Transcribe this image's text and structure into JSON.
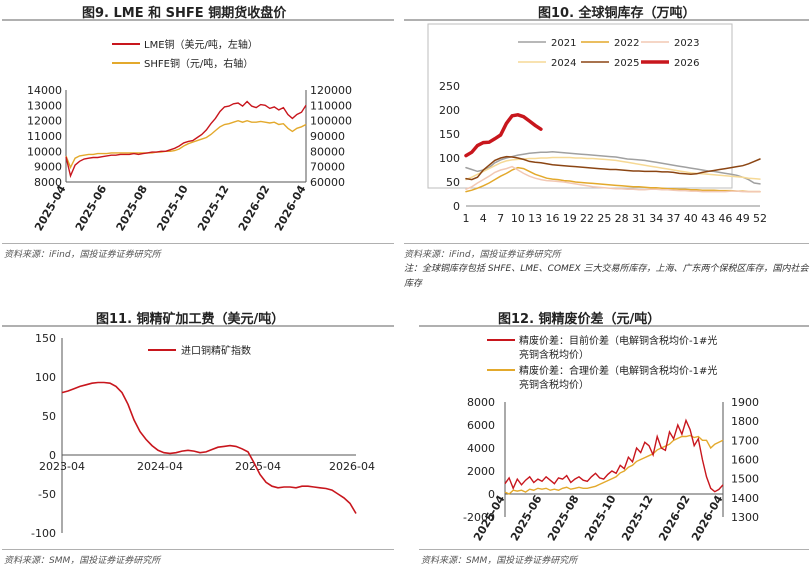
{
  "titles": {
    "fig9": "图9. LME 和 SHFE 铜期货收盘价",
    "fig10": "图10. 全球铜库存（万吨）",
    "fig11": "图11. 铜精矿加工费（美元/吨）",
    "fig12": "图12. 铜精废价差（元/吨）"
  },
  "sources": {
    "fig9": "资料来源：iFind，国投证券证券研究所",
    "fig10": "资料来源：iFind，国投证券证券研究所",
    "fig11": "资料来源：SMM，国投证券证券研究所",
    "fig12": "资料来源：SMM，国投证券证券研究所"
  },
  "note10": "注：全球铜库存包括 SHFE、LME、COMEX 三大交易所库存，上海、广东两个保税区库存，国内社会库存",
  "colors": {
    "red": "#c8161d",
    "gold": "#e3a92c",
    "brown": "#8b4513",
    "gray": "#a0a0a0",
    "pink": "#f2c8b4",
    "lightgold": "#f6d995"
  },
  "chart_data": [
    {
      "id": "fig9",
      "type": "line",
      "legend": [
        "LME铜（美元/吨，左轴）",
        "SHFE铜（元/吨，右轴）"
      ],
      "x_ticks": [
        "2025-04",
        "2025-06",
        "2025-08",
        "2025-10",
        "2025-12",
        "2026-02",
        "2026-04"
      ],
      "yleft_ticks": [
        8000,
        9000,
        10000,
        11000,
        12000,
        13000,
        14000
      ],
      "yright_ticks": [
        60000,
        70000,
        80000,
        90000,
        100000,
        110000,
        120000
      ],
      "ylim_left": [
        8000,
        14000
      ],
      "ylim_right": [
        60000,
        120000
      ],
      "series": [
        {
          "name": "LME铜（美元/吨，左轴）",
          "axis": "left",
          "color": "#c8161d",
          "values": [
            9650,
            8400,
            9100,
            9350,
            9500,
            9550,
            9600,
            9600,
            9650,
            9700,
            9750,
            9750,
            9800,
            9800,
            9800,
            9850,
            9800,
            9850,
            9900,
            9950,
            9950,
            10000,
            10000,
            10100,
            10200,
            10350,
            10550,
            10650,
            10700,
            10900,
            11100,
            11400,
            11800,
            12150,
            12600,
            12900,
            12950,
            13100,
            13150,
            12950,
            13250,
            12950,
            12850,
            13050,
            13000,
            12800,
            12900,
            12700,
            12850,
            12400,
            12150,
            12400,
            12550,
            13000
          ]
        },
        {
          "name": "SHFE铜（元/吨，右轴）",
          "axis": "right",
          "color": "#e3a92c",
          "values": [
            77000,
            69500,
            75500,
            77000,
            77500,
            78000,
            78000,
            78500,
            78500,
            78500,
            79000,
            79000,
            79000,
            79000,
            79000,
            79000,
            79000,
            79000,
            79000,
            79000,
            79500,
            79500,
            80000,
            80000,
            80500,
            81500,
            83500,
            85000,
            86000,
            87000,
            88000,
            89000,
            91000,
            93500,
            96000,
            97500,
            98000,
            99000,
            100000,
            99000,
            100000,
            99000,
            99000,
            99500,
            99000,
            98500,
            99000,
            97500,
            98000,
            95000,
            93000,
            95000,
            96000,
            97500
          ]
        }
      ]
    },
    {
      "id": "fig10",
      "type": "line",
      "x_ticks": [
        1,
        4,
        7,
        10,
        13,
        16,
        19,
        22,
        25,
        28,
        31,
        34,
        37,
        40,
        43,
        46,
        49,
        52
      ],
      "y_ticks": [
        0,
        50,
        100,
        150,
        200,
        250
      ],
      "ylim": [
        0,
        250
      ],
      "series": [
        {
          "name": "2021",
          "color": "#a0a0a0",
          "width": 1.5,
          "values": [
            80,
            76,
            72,
            75,
            80,
            90,
            96,
            100,
            103,
            106,
            108,
            110,
            111,
            112,
            112,
            113,
            112,
            111,
            110,
            109,
            108,
            107,
            106,
            105,
            104,
            103,
            102,
            100,
            98,
            97,
            96,
            95,
            93,
            91,
            89,
            87,
            85,
            83,
            81,
            79,
            77,
            75,
            73,
            72,
            70,
            68,
            66,
            64,
            60,
            55,
            48,
            46
          ]
        },
        {
          "name": "2022",
          "color": "#e3a92c",
          "width": 1.5,
          "values": [
            30,
            33,
            37,
            42,
            48,
            55,
            62,
            68,
            75,
            80,
            78,
            72,
            66,
            62,
            58,
            56,
            55,
            53,
            52,
            50,
            49,
            48,
            47,
            46,
            45,
            44,
            43,
            42,
            41,
            40,
            40,
            39,
            38,
            38,
            37,
            36,
            36,
            35,
            35,
            34,
            34,
            33,
            33,
            33,
            32,
            32,
            32,
            31,
            31,
            30,
            30,
            30
          ]
        },
        {
          "name": "2023",
          "color": "#f2c8b4",
          "width": 1.5,
          "values": [
            35,
            40,
            48,
            55,
            62,
            70,
            75,
            78,
            82,
            75,
            68,
            62,
            58,
            55,
            53,
            52,
            51,
            50,
            48,
            46,
            44,
            42,
            40,
            39,
            38,
            37,
            36,
            36,
            35,
            35,
            34,
            34,
            35,
            35,
            34,
            34,
            33,
            32,
            32,
            31,
            31,
            30,
            30,
            30,
            30,
            30,
            31,
            31,
            30,
            30,
            30,
            30
          ]
        },
        {
          "name": "2024",
          "color": "#f6d995",
          "width": 1.5,
          "values": [
            55,
            60,
            66,
            72,
            78,
            84,
            90,
            94,
            96,
            97,
            98,
            99,
            99,
            100,
            100,
            101,
            101,
            101,
            101,
            100,
            100,
            99,
            99,
            98,
            97,
            96,
            95,
            93,
            91,
            89,
            87,
            85,
            83,
            81,
            79,
            77,
            75,
            73,
            71,
            69,
            68,
            67,
            66,
            65,
            64,
            63,
            62,
            61,
            60,
            58,
            57,
            56
          ]
        },
        {
          "name": "2025",
          "color": "#8b4513",
          "width": 1.5,
          "values": [
            57,
            55,
            60,
            75,
            85,
            95,
            100,
            103,
            102,
            100,
            97,
            93,
            91,
            90,
            88,
            86,
            85,
            84,
            83,
            82,
            81,
            80,
            79,
            78,
            77,
            76,
            76,
            75,
            74,
            73,
            73,
            72,
            72,
            72,
            71,
            71,
            70,
            68,
            67,
            66,
            67,
            70,
            72,
            74,
            76,
            78,
            80,
            82,
            84,
            88,
            93,
            98
          ]
        },
        {
          "name": "2026",
          "color": "#c8161d",
          "width": 3.5,
          "values": [
            105,
            112,
            126,
            132,
            133,
            140,
            148,
            172,
            188,
            190,
            186,
            177,
            168,
            160
          ]
        }
      ]
    },
    {
      "id": "fig11",
      "type": "line",
      "legend": [
        "进口铜精矿指数"
      ],
      "x_ticks": [
        "2023-04",
        "2024-04",
        "2025-04",
        "2026-04"
      ],
      "y_ticks": [
        -100,
        -50,
        0,
        50,
        100,
        150
      ],
      "ylim": [
        -100,
        150
      ],
      "series": [
        {
          "name": "进口铜精矿指数",
          "color": "#c8161d",
          "values": [
            80,
            82,
            85,
            88,
            90,
            92,
            93,
            93,
            92,
            88,
            80,
            65,
            45,
            30,
            20,
            12,
            6,
            3,
            2,
            3,
            5,
            6,
            5,
            3,
            4,
            7,
            10,
            11,
            12,
            11,
            8,
            4,
            -10,
            -25,
            -35,
            -40,
            -42,
            -41,
            -41,
            -42,
            -40,
            -40,
            -41,
            -42,
            -43,
            -45,
            -50,
            -55,
            -62,
            -75
          ]
        }
      ]
    },
    {
      "id": "fig12",
      "type": "line",
      "legend": [
        "精废价差：目前价差（电解铜含税均价-1#光亮铜含税均价）",
        "精废价差：合理价差（电解铜含税均价-1#光亮铜含税均价）"
      ],
      "x_ticks": [
        "2025-04",
        "2025-06",
        "2025-08",
        "2025-10",
        "2025-12",
        "2026-02",
        "2026-04"
      ],
      "yleft_ticks": [
        -2000,
        0,
        2000,
        4000,
        6000,
        8000
      ],
      "yright_ticks": [
        1300,
        1400,
        1500,
        1600,
        1700,
        1800,
        1900
      ],
      "ylim_left": [
        -2000,
        8000
      ],
      "ylim_right": [
        1300,
        1900
      ],
      "series": [
        {
          "name": "精废价差：目前价差（电解铜含税均价-1#光亮铜含税均价）",
          "axis": "left",
          "color": "#c8161d",
          "values": [
            900,
            1400,
            500,
            1300,
            800,
            1200,
            1500,
            1000,
            1300,
            1100,
            1500,
            1200,
            900,
            1400,
            1300,
            1600,
            1000,
            1300,
            1500,
            1200,
            1100,
            1500,
            1800,
            1400,
            1300,
            1700,
            2000,
            1800,
            2500,
            2200,
            3200,
            2800,
            4000,
            3600,
            4500,
            4200,
            3400,
            5000,
            4000,
            3800,
            5400,
            4800,
            6000,
            5200,
            6400,
            5600,
            4200,
            4800,
            3000,
            1500,
            500,
            200,
            400,
            800
          ]
        },
        {
          "name": "精废价差：合理价差（电解铜含税均价-1#光亮铜含税均价）",
          "axis": "right",
          "color": "#e3a92c",
          "values": [
            1430,
            1420,
            1440,
            1435,
            1440,
            1430,
            1445,
            1440,
            1450,
            1445,
            1450,
            1440,
            1445,
            1440,
            1450,
            1455,
            1445,
            1450,
            1455,
            1450,
            1450,
            1455,
            1460,
            1470,
            1480,
            1490,
            1500,
            1510,
            1530,
            1540,
            1560,
            1570,
            1590,
            1600,
            1610,
            1620,
            1630,
            1650,
            1660,
            1670,
            1680,
            1700,
            1710,
            1720,
            1720,
            1725,
            1715,
            1720,
            1700,
            1700,
            1660,
            1680,
            1690,
            1700
          ]
        }
      ]
    }
  ]
}
